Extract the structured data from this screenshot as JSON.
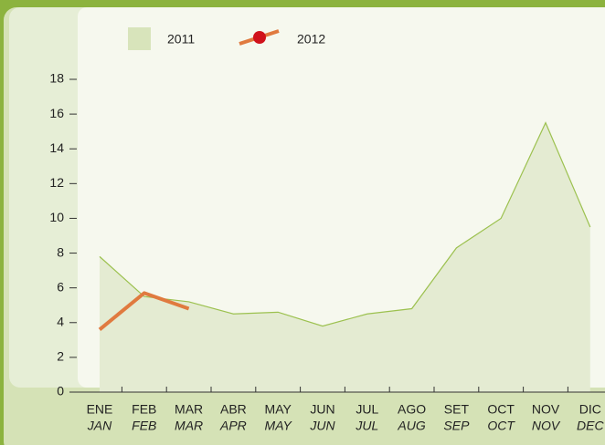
{
  "chart_data": {
    "type": "area-line",
    "categories": [
      "ENE",
      "FEB",
      "MAR",
      "ABR",
      "MAY",
      "JUN",
      "JUL",
      "AGO",
      "SET",
      "OCT",
      "NOV",
      "DIC"
    ],
    "categories_en": [
      "JAN",
      "FEB",
      "MAR",
      "APR",
      "MAY",
      "JUN",
      "JUL",
      "AUG",
      "SEP",
      "OCT",
      "NOV",
      "DEC"
    ],
    "series": [
      {
        "name": "2011",
        "color": "#9cc14f",
        "fill": "#e4ebd2",
        "values": [
          7.8,
          5.5,
          5.2,
          4.5,
          4.6,
          3.8,
          4.5,
          4.8,
          8.3,
          10,
          15.5,
          9.5
        ]
      },
      {
        "name": "2012",
        "color": "#e07a3f",
        "values": [
          3.6,
          5.7,
          4.8,
          null,
          null,
          null,
          null,
          null,
          null,
          null,
          null,
          null
        ]
      }
    ],
    "ylim": [
      0,
      18
    ],
    "yticks": [
      0,
      2,
      4,
      6,
      8,
      10,
      12,
      14,
      16,
      18
    ]
  }
}
